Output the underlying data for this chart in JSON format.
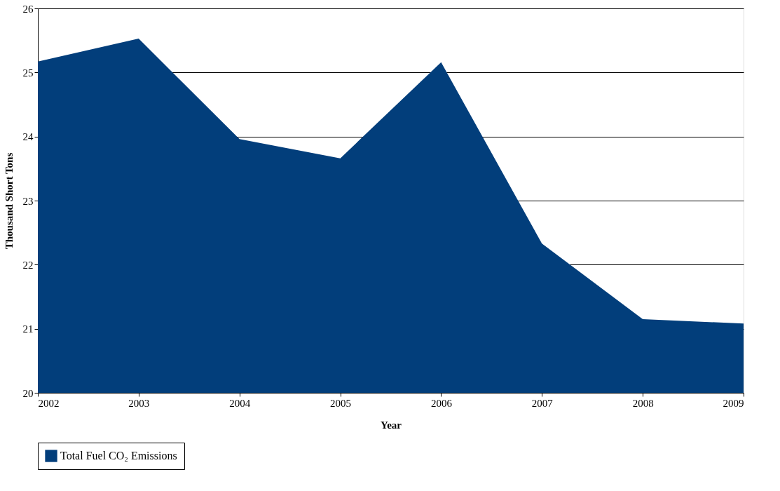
{
  "chart_data": {
    "type": "area",
    "xlabel": "Year",
    "ylabel": "Thousand Short Tons",
    "x": [
      2002,
      2003,
      2004,
      2005,
      2006,
      2007,
      2008,
      2009
    ],
    "series": [
      {
        "name": "Total Fuel CO₂ Emissions",
        "color": "#023e7b",
        "values": [
          25.17,
          25.53,
          23.96,
          23.66,
          25.16,
          22.33,
          21.15,
          21.08
        ]
      }
    ],
    "xlim": [
      2002,
      2009
    ],
    "xticks": [
      2002,
      2003,
      2004,
      2005,
      2006,
      2007,
      2008,
      2009
    ],
    "ylim": [
      20,
      26
    ],
    "yticks": [
      20,
      21,
      22,
      23,
      24,
      25,
      26
    ],
    "grid": "y",
    "legend": "bottom"
  }
}
